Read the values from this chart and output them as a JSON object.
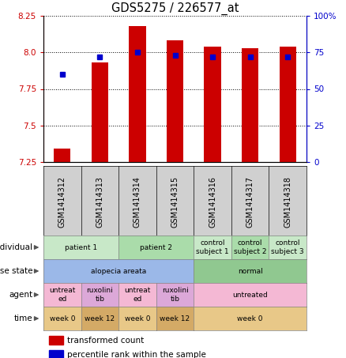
{
  "title": "GDS5275 / 226577_at",
  "samples": [
    "GSM1414312",
    "GSM1414313",
    "GSM1414314",
    "GSM1414315",
    "GSM1414316",
    "GSM1414317",
    "GSM1414318"
  ],
  "transformed_count": [
    7.34,
    7.93,
    8.18,
    8.08,
    8.04,
    8.03,
    8.04
  ],
  "percentile_rank": [
    60,
    72,
    75,
    73,
    72,
    72,
    72
  ],
  "ylim_left": [
    7.25,
    8.25
  ],
  "ylim_right": [
    0,
    100
  ],
  "yticks_left": [
    7.25,
    7.5,
    7.75,
    8.0,
    8.25
  ],
  "yticks_right": [
    0,
    25,
    50,
    75,
    100
  ],
  "ytick_labels_right": [
    "0",
    "25",
    "50",
    "75",
    "100%"
  ],
  "bar_color": "#cc0000",
  "dot_color": "#0000cc",
  "xtick_bg": "#d0d0d0",
  "metadata_rows": [
    {
      "label": "individual",
      "cells": [
        {
          "text": "patient 1",
          "span": 2,
          "color": "#c8e8c8"
        },
        {
          "text": "patient 2",
          "span": 2,
          "color": "#aadcaa"
        },
        {
          "text": "control\nsubject 1",
          "span": 1,
          "color": "#c8e8c8"
        },
        {
          "text": "control\nsubject 2",
          "span": 1,
          "color": "#aadcaa"
        },
        {
          "text": "control\nsubject 3",
          "span": 1,
          "color": "#c8e8c8"
        }
      ]
    },
    {
      "label": "disease state",
      "cells": [
        {
          "text": "alopecia areata",
          "span": 4,
          "color": "#9bb8e8"
        },
        {
          "text": "normal",
          "span": 3,
          "color": "#90c890"
        }
      ]
    },
    {
      "label": "agent",
      "cells": [
        {
          "text": "untreat\ned",
          "span": 1,
          "color": "#f4b8d4"
        },
        {
          "text": "ruxolini\ntib",
          "span": 1,
          "color": "#dca8d8"
        },
        {
          "text": "untreat\ned",
          "span": 1,
          "color": "#f4b8d4"
        },
        {
          "text": "ruxolini\ntib",
          "span": 1,
          "color": "#dca8d8"
        },
        {
          "text": "untreated",
          "span": 3,
          "color": "#f4b8d4"
        }
      ]
    },
    {
      "label": "time",
      "cells": [
        {
          "text": "week 0",
          "span": 1,
          "color": "#e8c888"
        },
        {
          "text": "week 12",
          "span": 1,
          "color": "#d4aa66"
        },
        {
          "text": "week 0",
          "span": 1,
          "color": "#e8c888"
        },
        {
          "text": "week 12",
          "span": 1,
          "color": "#d4aa66"
        },
        {
          "text": "week 0",
          "span": 3,
          "color": "#e8c888"
        }
      ]
    }
  ],
  "legend": [
    {
      "color": "#cc0000",
      "label": "transformed count"
    },
    {
      "color": "#0000cc",
      "label": "percentile rank within the sample"
    }
  ]
}
